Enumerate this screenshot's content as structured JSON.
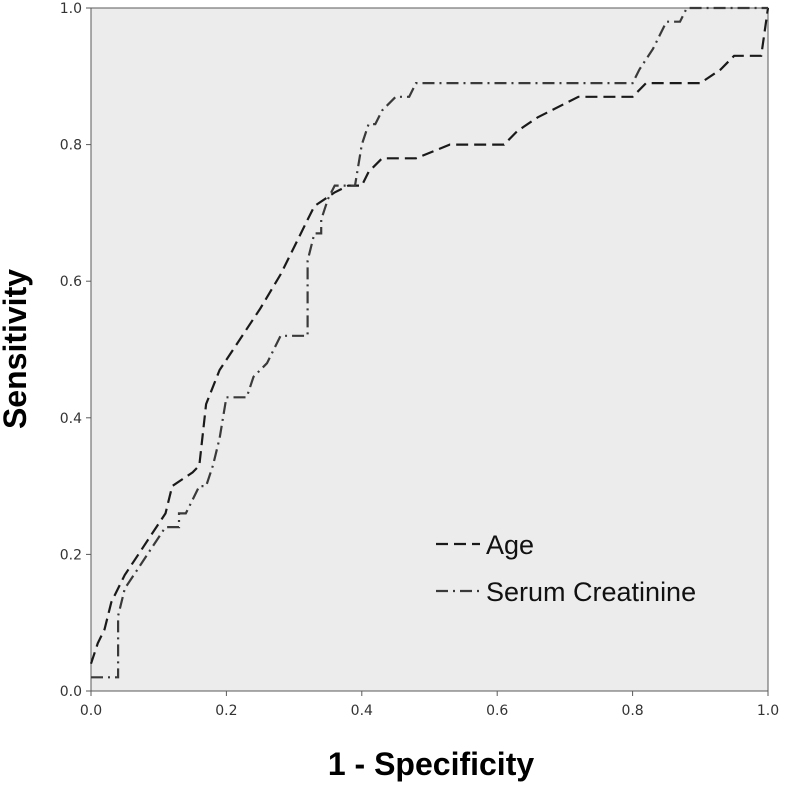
{
  "chart_data": {
    "type": "line",
    "xlabel": "1 - Specificity",
    "ylabel": "Sensitivity",
    "xlim": [
      0,
      1
    ],
    "ylim": [
      0,
      1
    ],
    "xticks": [
      "0.0",
      "0.2",
      "0.4",
      "0.6",
      "0.8",
      "1.0"
    ],
    "yticks": [
      "0.0",
      "0.2",
      "0.4",
      "0.6",
      "0.8",
      "1.0"
    ],
    "grid": false,
    "legend_position": "bottom-right",
    "plot_background": "#ececec",
    "series": [
      {
        "name": "Age",
        "style": "dashed",
        "color": "#1a1a1a",
        "x": [
          0.0,
          0.01,
          0.02,
          0.03,
          0.05,
          0.07,
          0.09,
          0.11,
          0.12,
          0.15,
          0.16,
          0.17,
          0.19,
          0.21,
          0.25,
          0.28,
          0.3,
          0.32,
          0.33,
          0.36,
          0.38,
          0.4,
          0.41,
          0.43,
          0.48,
          0.53,
          0.61,
          0.63,
          0.66,
          0.72,
          0.8,
          0.82,
          0.9,
          0.93,
          0.95,
          0.99,
          1.0
        ],
        "y": [
          0.04,
          0.07,
          0.09,
          0.13,
          0.17,
          0.2,
          0.23,
          0.26,
          0.3,
          0.32,
          0.33,
          0.42,
          0.47,
          0.5,
          0.56,
          0.61,
          0.65,
          0.69,
          0.71,
          0.73,
          0.74,
          0.74,
          0.76,
          0.78,
          0.78,
          0.8,
          0.8,
          0.82,
          0.84,
          0.87,
          0.87,
          0.89,
          0.89,
          0.91,
          0.93,
          0.93,
          1.0
        ]
      },
      {
        "name": "Serum Creatinine",
        "style": "dash-dot",
        "color": "#3a3a3a",
        "x": [
          0.0,
          0.04,
          0.04,
          0.05,
          0.07,
          0.09,
          0.11,
          0.12,
          0.13,
          0.13,
          0.14,
          0.15,
          0.16,
          0.17,
          0.18,
          0.19,
          0.2,
          0.23,
          0.24,
          0.26,
          0.27,
          0.28,
          0.29,
          0.32,
          0.32,
          0.33,
          0.34,
          0.34,
          0.35,
          0.36,
          0.37,
          0.39,
          0.4,
          0.41,
          0.42,
          0.43,
          0.45,
          0.47,
          0.48,
          0.8,
          0.81,
          0.83,
          0.84,
          0.85,
          0.87,
          0.88,
          0.9,
          0.9,
          0.99,
          0.99,
          1.0
        ],
        "y": [
          0.02,
          0.02,
          0.11,
          0.15,
          0.18,
          0.21,
          0.24,
          0.24,
          0.24,
          0.26,
          0.26,
          0.28,
          0.3,
          0.3,
          0.33,
          0.37,
          0.43,
          0.43,
          0.46,
          0.48,
          0.5,
          0.52,
          0.52,
          0.52,
          0.63,
          0.67,
          0.67,
          0.69,
          0.72,
          0.74,
          0.74,
          0.74,
          0.8,
          0.83,
          0.83,
          0.85,
          0.87,
          0.87,
          0.89,
          0.89,
          0.91,
          0.94,
          0.96,
          0.98,
          0.98,
          1.0,
          1.0,
          1.0,
          1.0,
          1.0,
          1.0
        ]
      }
    ]
  }
}
